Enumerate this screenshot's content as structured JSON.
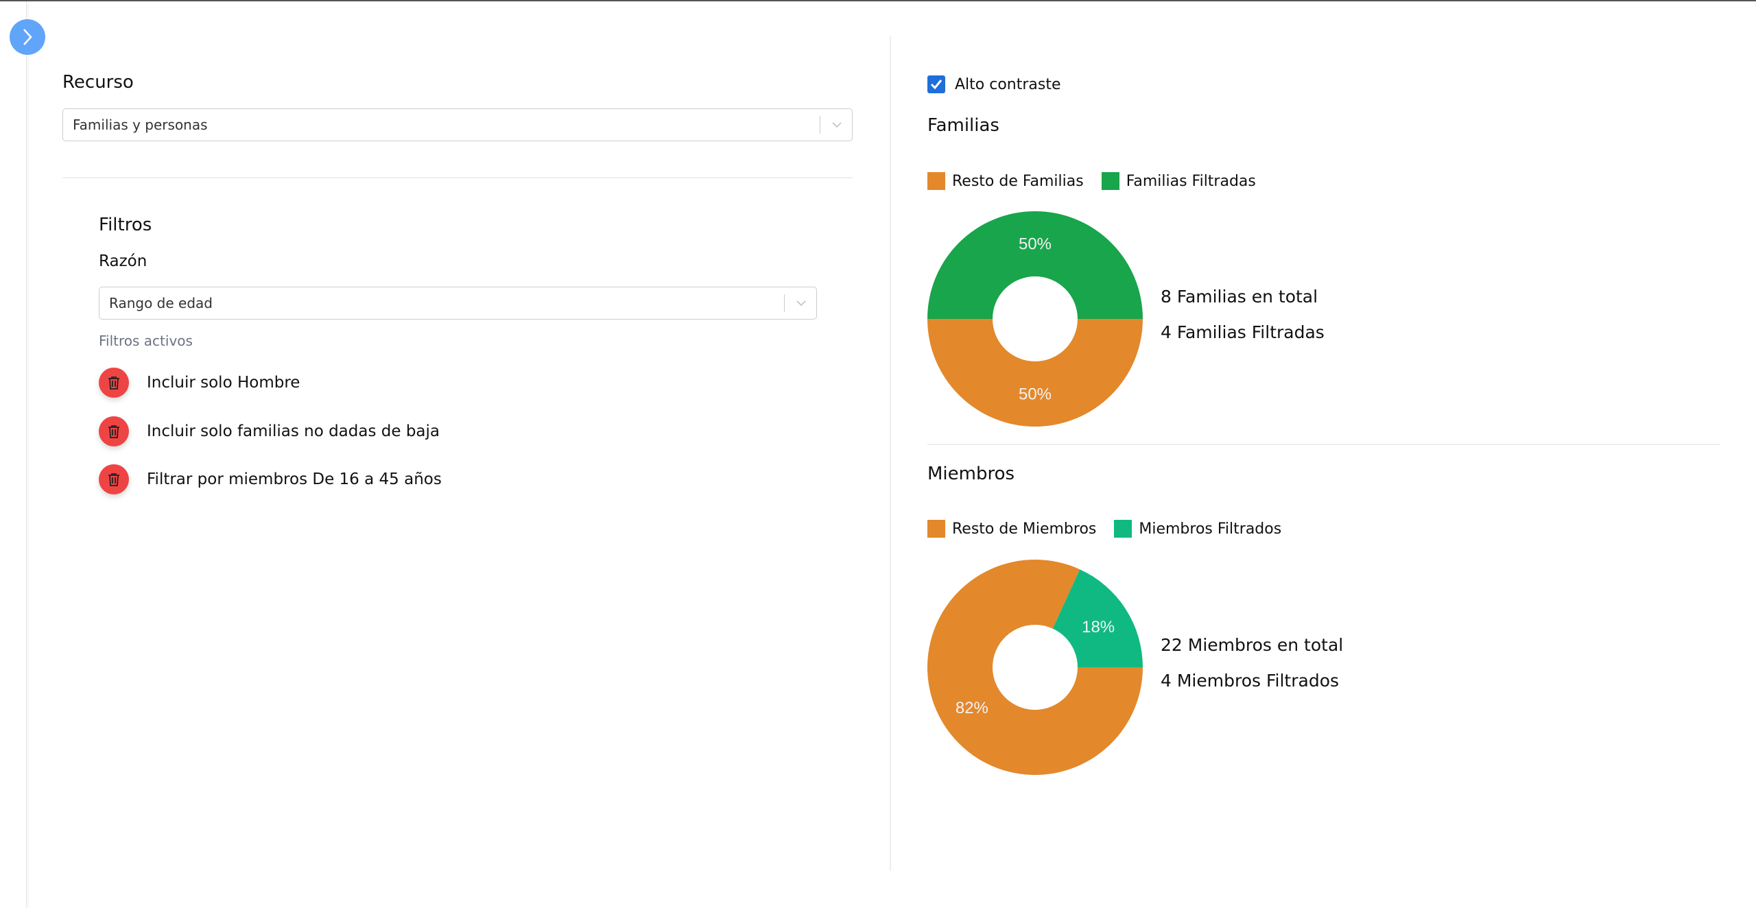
{
  "sidebar": {
    "toggle_icon": "chevron-right-icon",
    "toggle_color": "#60a5fa"
  },
  "left": {
    "resource_label": "Recurso",
    "resource_value": "Familias y personas",
    "filters_title": "Filtros",
    "reason_label": "Razón",
    "reason_value": "Rango de edad",
    "active_filters_label": "Filtros activos",
    "active_filters": [
      {
        "label": "Incluir solo Hombre",
        "icon": "trash-icon"
      },
      {
        "label": "Incluir solo familias no dadas de baja",
        "icon": "trash-icon"
      },
      {
        "label": "Filtrar por miembros De 16 a 45 años",
        "icon": "trash-icon"
      }
    ]
  },
  "right": {
    "high_contrast_label": "Alto contraste",
    "high_contrast_checked": true
  },
  "chart_data": [
    {
      "type": "pie",
      "title": "Familias",
      "legend": "top-left",
      "categories": [
        "Resto de Familias",
        "Familias Filtradas"
      ],
      "values": [
        4,
        4
      ],
      "labels": [
        "50%",
        "50%"
      ],
      "colors": [
        "#e3882b",
        "#18a54b"
      ],
      "summary": [
        "8 Familias en total",
        "4 Familias Filtradas"
      ]
    },
    {
      "type": "pie",
      "title": "Miembros",
      "legend": "top-left",
      "categories": [
        "Resto de Miembros",
        "Miembros Filtrados"
      ],
      "values": [
        18,
        4
      ],
      "labels": [
        "82%",
        "18%"
      ],
      "colors": [
        "#e3882b",
        "#10b981"
      ],
      "summary": [
        "22 Miembros en total",
        "4 Miembros Filtrados"
      ]
    }
  ]
}
